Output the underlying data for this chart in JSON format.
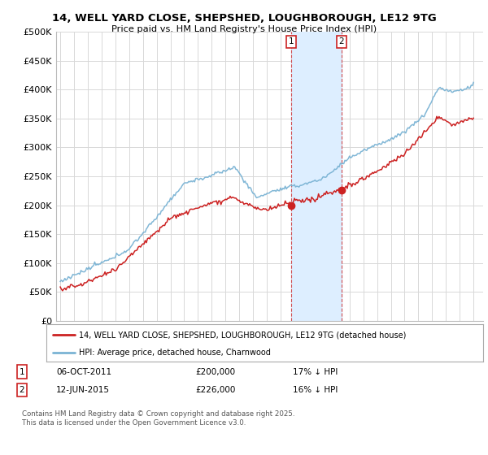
{
  "title": "14, WELL YARD CLOSE, SHEPSHED, LOUGHBOROUGH, LE12 9TG",
  "subtitle": "Price paid vs. HM Land Registry's House Price Index (HPI)",
  "ylim": [
    0,
    500000
  ],
  "yticks": [
    0,
    50000,
    100000,
    150000,
    200000,
    250000,
    300000,
    350000,
    400000,
    450000,
    500000
  ],
  "ytick_labels": [
    "£0",
    "£50K",
    "£100K",
    "£150K",
    "£200K",
    "£250K",
    "£300K",
    "£350K",
    "£400K",
    "£450K",
    "£500K"
  ],
  "hpi_color": "#7ab3d4",
  "price_color": "#cc2222",
  "sale1_x": 2011.75,
  "sale2_x": 2015.42,
  "sale1_price": 200000,
  "sale2_price": 226000,
  "sale1_date": "06-OCT-2011",
  "sale1_price_label": "£200,000",
  "sale1_hpi": "17% ↓ HPI",
  "sale2_date": "12-JUN-2015",
  "sale2_price_label": "£226,000",
  "sale2_hpi": "16% ↓ HPI",
  "legend_line1": "14, WELL YARD CLOSE, SHEPSHED, LOUGHBOROUGH, LE12 9TG (detached house)",
  "legend_line2": "HPI: Average price, detached house, Charnwood",
  "footnote": "Contains HM Land Registry data © Crown copyright and database right 2025.\nThis data is licensed under the Open Government Licence v3.0.",
  "background_color": "#ffffff",
  "grid_color": "#d8d8d8",
  "marker_border_color": "#cc2222",
  "span_color": "#ddeeff"
}
